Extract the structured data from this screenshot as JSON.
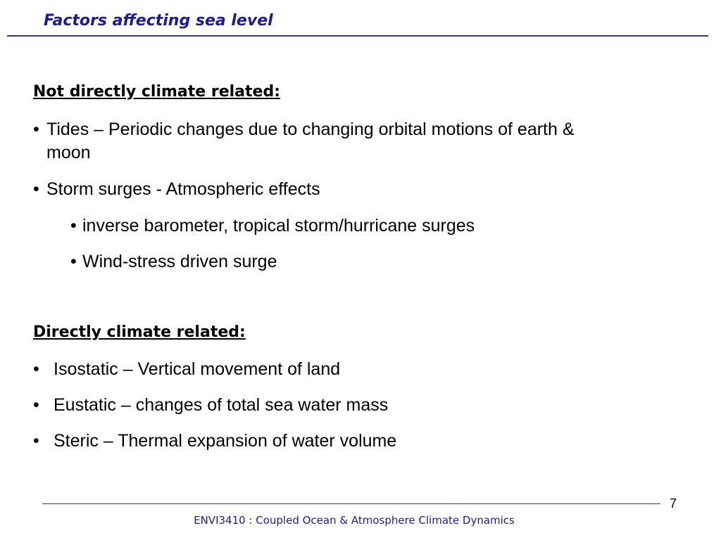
{
  "slide": {
    "title": "Factors affecting sea level",
    "page_number": "7",
    "footer": "ENVI3410 : Coupled Ocean & Atmosphere Climate Dynamics"
  },
  "section1": {
    "heading": "Not directly climate related:",
    "items": [
      {
        "line1": "Tides – Periodic changes due to changing orbital motions of earth &",
        "line2": "moon"
      },
      {
        "text": "Storm surges -  Atmospheric effects",
        "subitems": [
          "inverse barometer, tropical storm/hurricane surges",
          "Wind-stress driven surge"
        ]
      }
    ]
  },
  "section2": {
    "heading": "Directly climate related:",
    "items": [
      "Isostatic – Vertical movement of land",
      "Eustatic – changes of total sea water mass",
      "Steric – Thermal expansion of water volume"
    ]
  },
  "bullet_glyph": "•",
  "colors": {
    "title": "#1a1a9c",
    "rule": "#2e3a9a",
    "body": "#000000"
  }
}
